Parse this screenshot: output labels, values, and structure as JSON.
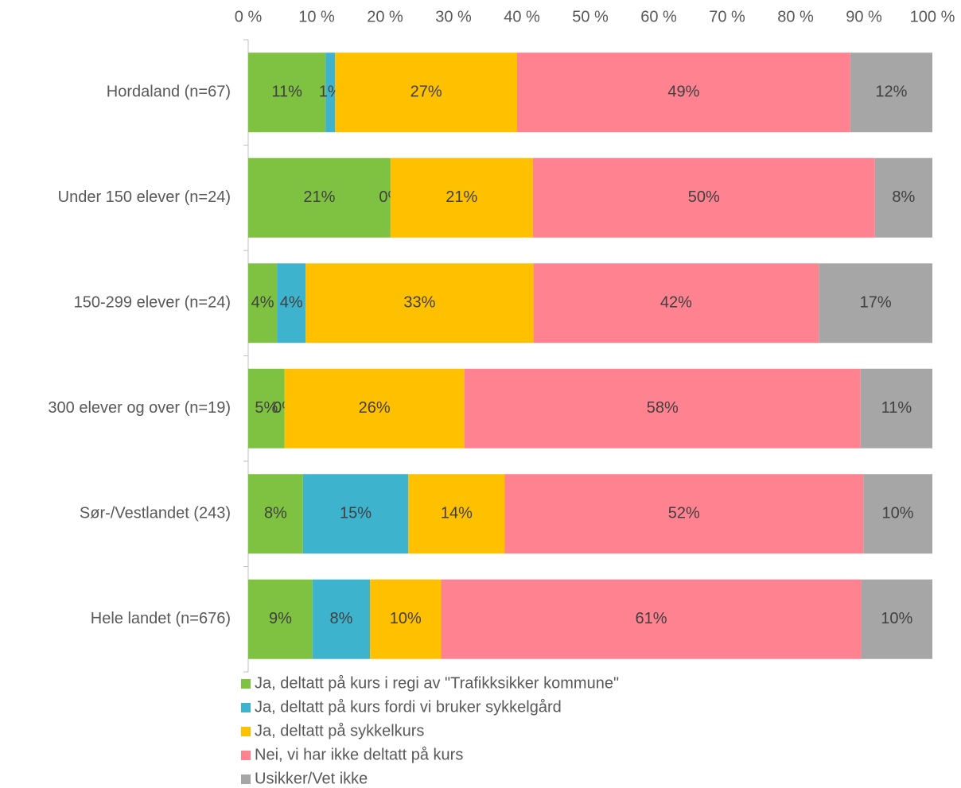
{
  "chart_data": {
    "type": "stacked_barh",
    "categories": [
      "Hordaland (n=67)",
      "Under 150 elever (n=24)",
      "150-299 elever (n=24)",
      "300 elever og over  (n=19)",
      "Sør-/Vestlandet (243)",
      "Hele landet (n=676)"
    ],
    "series": [
      {
        "name": "Ja, deltatt på kurs i regi av \"Trafikksikker kommune\"",
        "color": "#7fc241",
        "values": [
          11.3,
          20.8,
          4.2,
          5.3,
          8.0,
          9.4
        ],
        "value_labels": [
          "11%",
          "21%",
          "4%",
          "5%",
          "8%",
          "9%"
        ]
      },
      {
        "name": "Ja, deltatt på kurs fordi vi bruker sykkelgård",
        "color": "#3eb3cd",
        "values": [
          1.4,
          0,
          4.2,
          0,
          15.4,
          8.4
        ],
        "value_labels": [
          "1%",
          "0%",
          "4%",
          "0%",
          "15%",
          "8%"
        ]
      },
      {
        "name": "Ja, deltatt på sykkelkurs",
        "color": "#ffc000",
        "values": [
          26.6,
          20.8,
          33.3,
          26.3,
          14.1,
          10.4
        ],
        "value_labels": [
          "27%",
          "21%",
          "33%",
          "26%",
          "14%",
          "10%"
        ]
      },
      {
        "name": "Nei, vi har ikke deltatt på kurs",
        "color": "#ff8290",
        "values": [
          48.7,
          50.0,
          41.7,
          57.9,
          52.4,
          61.4
        ],
        "value_labels": [
          "49%",
          "50%",
          "42%",
          "58%",
          "52%",
          "61%"
        ]
      },
      {
        "name": "Usikker/Vet ikke",
        "color": "#a6a6a6",
        "values": [
          12.0,
          8.4,
          16.6,
          10.5,
          10.1,
          10.4
        ],
        "value_labels": [
          "12%",
          "8%",
          "17%",
          "11%",
          "10%",
          "10%"
        ]
      }
    ],
    "xlim": [
      0,
      100
    ],
    "xticks": [
      {
        "value": 0,
        "label": "0 %"
      },
      {
        "value": 10,
        "label": "10 %"
      },
      {
        "value": 20,
        "label": "20 %"
      },
      {
        "value": 30,
        "label": "30 %"
      },
      {
        "value": 40,
        "label": "40 %"
      },
      {
        "value": 50,
        "label": "50 %"
      },
      {
        "value": 60,
        "label": "60 %"
      },
      {
        "value": 70,
        "label": "70 %"
      },
      {
        "value": 80,
        "label": "80 %"
      },
      {
        "value": 90,
        "label": "90 %"
      },
      {
        "value": 100,
        "label": "100 %"
      }
    ],
    "legend": "bottom-left"
  }
}
